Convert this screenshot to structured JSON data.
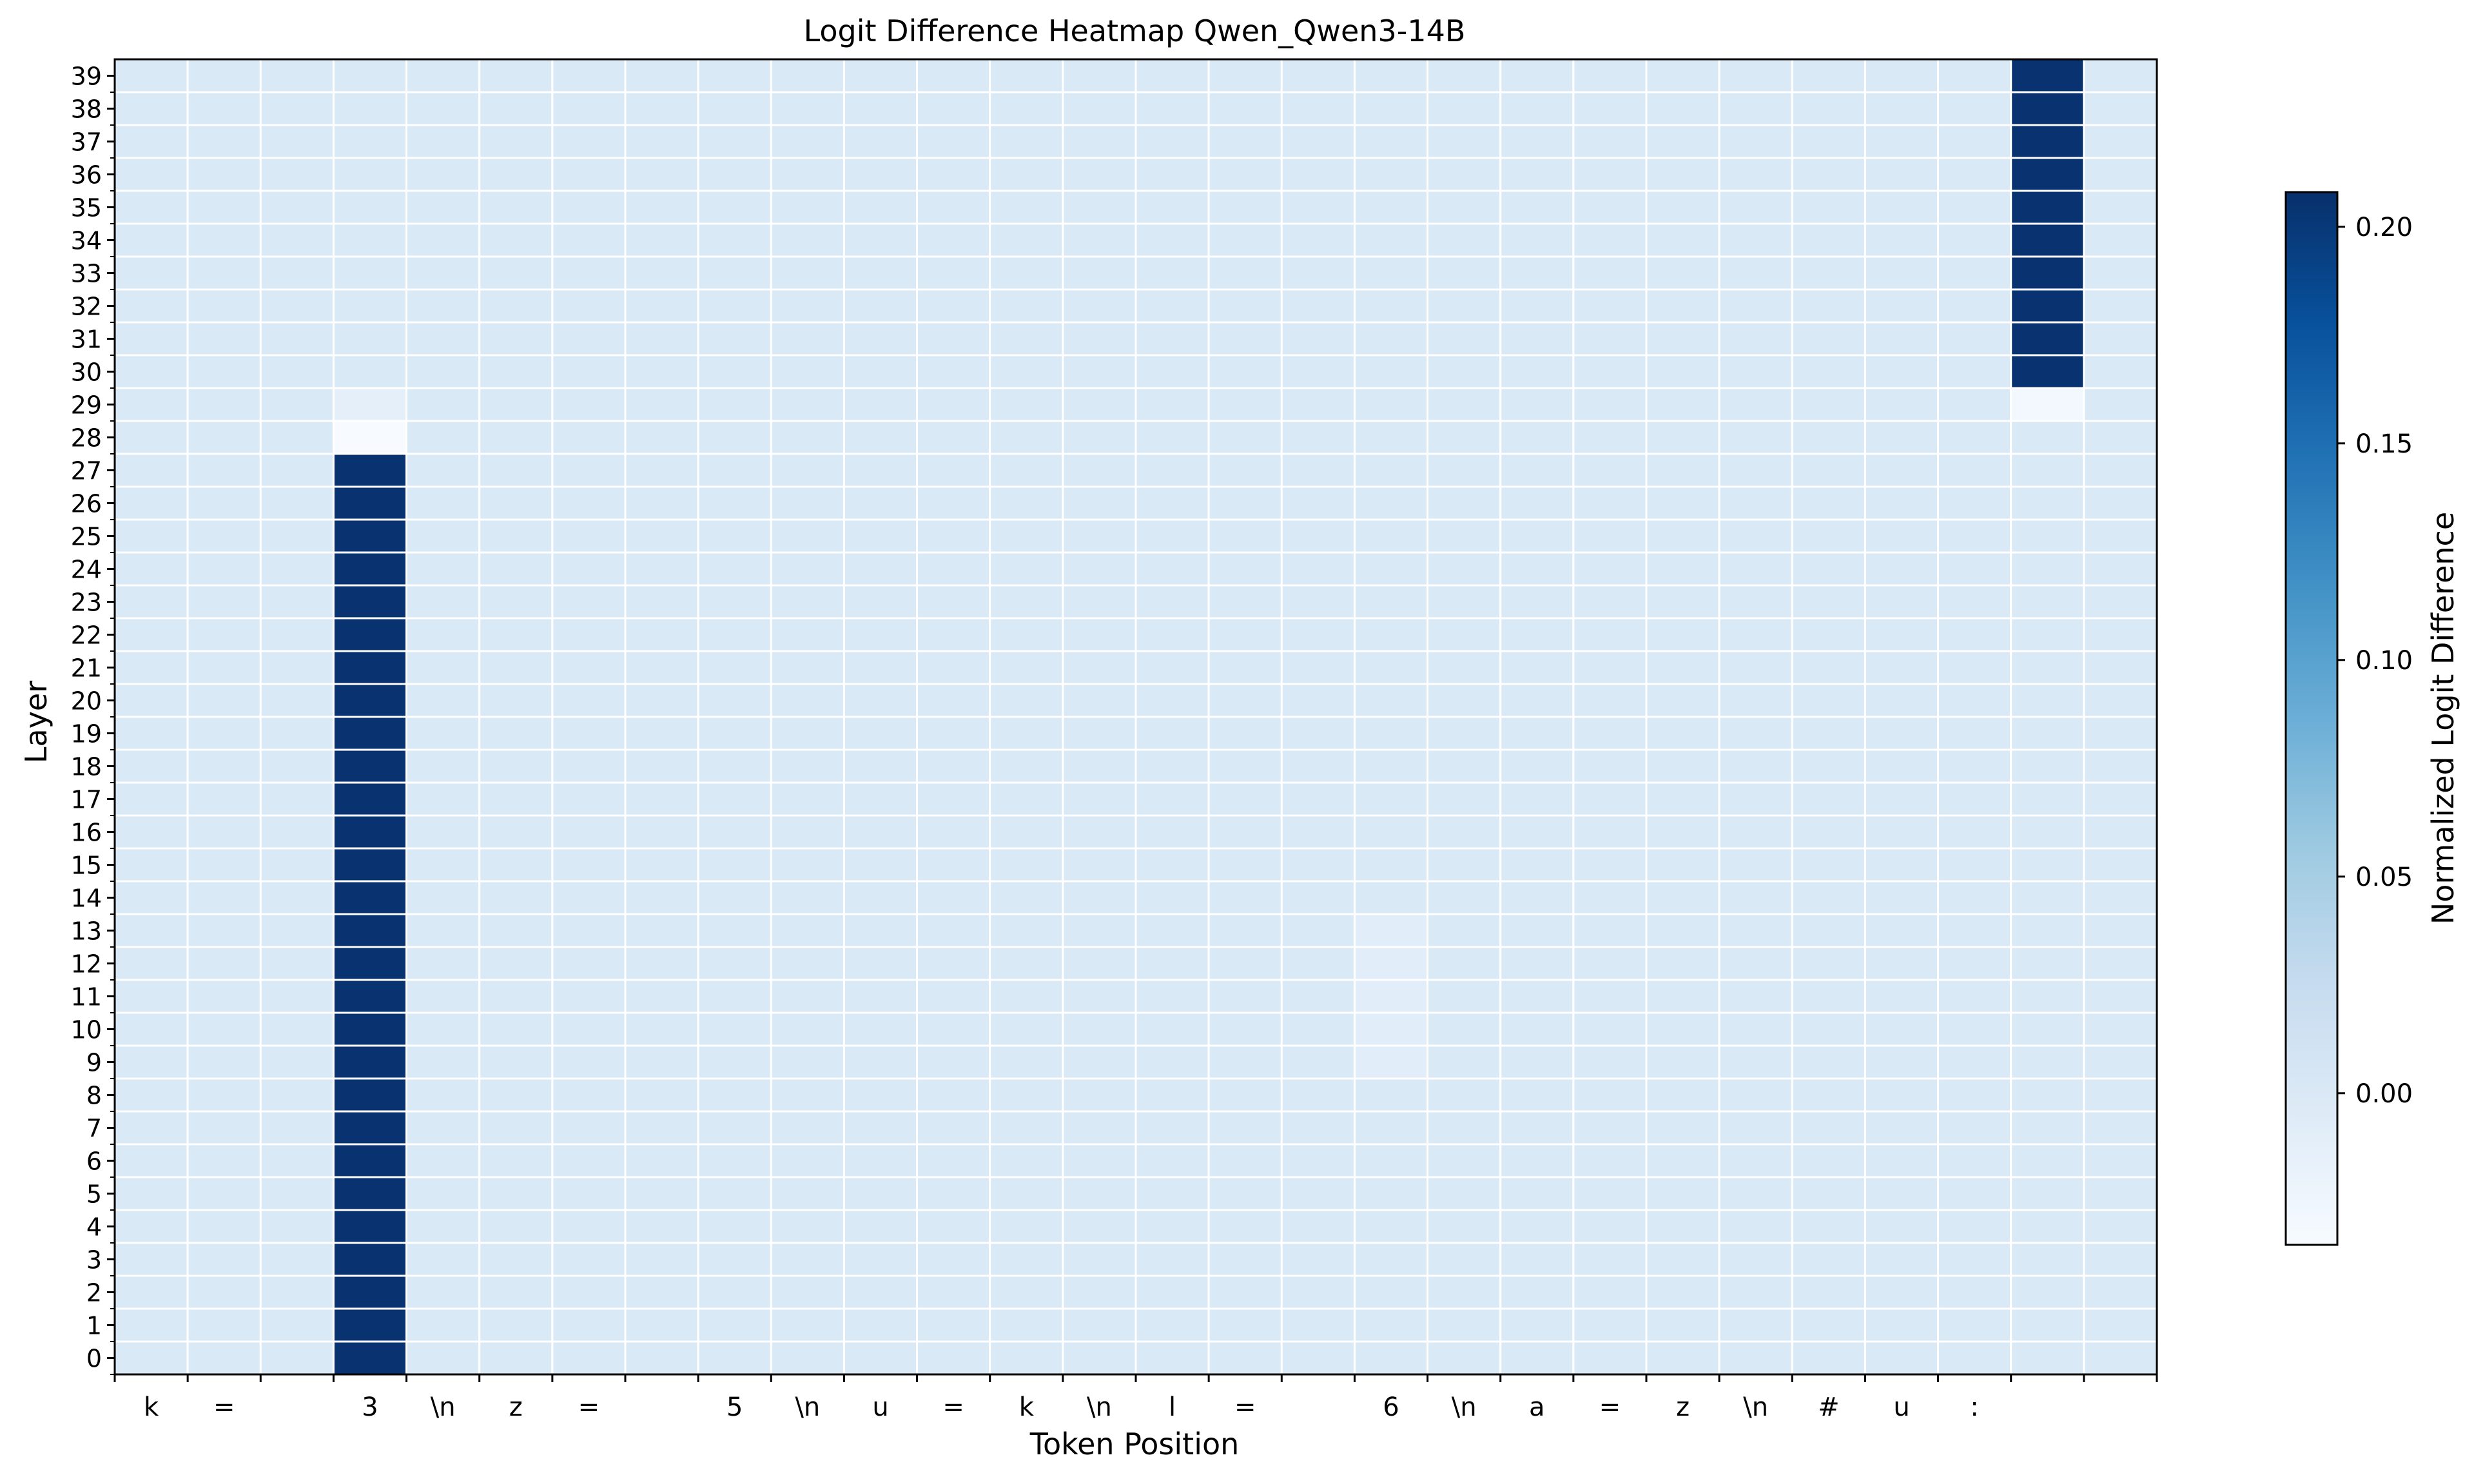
{
  "chart_data": {
    "type": "heatmap",
    "title": "Logit Difference Heatmap Qwen_Qwen3-14B",
    "xlabel": "Token Position",
    "ylabel": "Layer",
    "x_tick_labels": [
      "k",
      "=",
      "",
      "3",
      "\\n",
      "z",
      "=",
      "",
      "5",
      "\\n",
      "u",
      "=",
      "k",
      "\\n",
      "l",
      "=",
      "",
      "6",
      "\\n",
      "a",
      "=",
      "z",
      "\\n",
      "#",
      "u",
      ":",
      "",
      ""
    ],
    "y_tick_labels": [
      "0",
      "1",
      "2",
      "3",
      "4",
      "5",
      "6",
      "7",
      "8",
      "9",
      "10",
      "11",
      "12",
      "13",
      "14",
      "15",
      "16",
      "17",
      "18",
      "19",
      "20",
      "21",
      "22",
      "23",
      "24",
      "25",
      "26",
      "27",
      "28",
      "29",
      "30",
      "31",
      "32",
      "33",
      "34",
      "35",
      "36",
      "37",
      "38",
      "39"
    ],
    "colorbar": {
      "label": "Normalized Logit Difference",
      "colormap": "Blues",
      "vmin": -0.035,
      "vmax": 0.208,
      "ticks": [
        "0.20",
        "0.15",
        "0.10",
        "0.05",
        "0.00"
      ],
      "tick_values": [
        0.2,
        0.15,
        0.1,
        0.05,
        0.0
      ]
    },
    "baseline_value": 0.0,
    "highlighted_cells": [
      {
        "column": 3,
        "layers_from": 0,
        "layers_to": 27,
        "value": 0.205
      },
      {
        "column": 3,
        "layer": 28,
        "value": -0.035
      },
      {
        "column": 3,
        "layer": 29,
        "value": -0.012
      },
      {
        "column": 26,
        "layers_from": 30,
        "layers_to": 39,
        "value": 0.205
      },
      {
        "column": 26,
        "layer": 29,
        "value": -0.03
      },
      {
        "column": 17,
        "layers_from": 9,
        "layers_to": 13,
        "value": -0.008
      }
    ],
    "grid": true
  }
}
